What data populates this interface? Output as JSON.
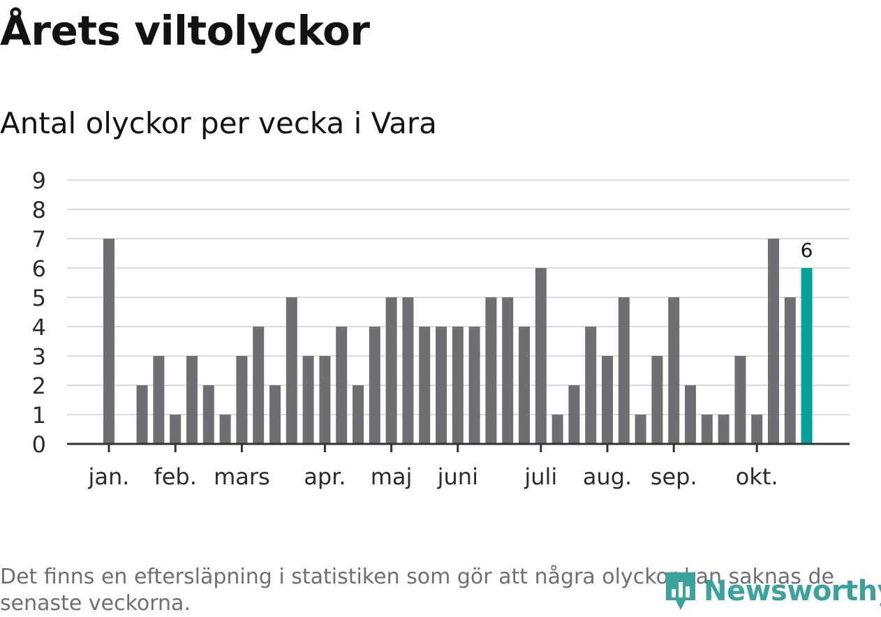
{
  "header": {
    "title": "Årets viltolyckor",
    "subtitle": "Antal olyckor per vecka i Vara"
  },
  "footnote": "Det finns en eftersläpning i statistiken som gör att några olyckor kan saknas de senaste veckorna.",
  "logo": {
    "text": "Newsworthy",
    "icon": "bar-chart-pin-icon",
    "color": "#3aa39c"
  },
  "chart_data": {
    "type": "bar",
    "ylim": [
      0,
      9
    ],
    "yticks": [
      "0",
      "1",
      "2",
      "3",
      "4",
      "5",
      "6",
      "7",
      "8",
      "9"
    ],
    "grid": true,
    "values": [
      7,
      0,
      2,
      3,
      1,
      3,
      2,
      1,
      3,
      4,
      2,
      5,
      3,
      3,
      4,
      2,
      4,
      5,
      5,
      4,
      4,
      4,
      4,
      5,
      5,
      4,
      6,
      1,
      2,
      4,
      3,
      5,
      1,
      3,
      5,
      2,
      1,
      1,
      3,
      1,
      7,
      5,
      6
    ],
    "month_labels": [
      {
        "label": "jan.",
        "index": 0
      },
      {
        "label": "feb.",
        "index": 4
      },
      {
        "label": "mars",
        "index": 8
      },
      {
        "label": "apr.",
        "index": 13
      },
      {
        "label": "maj",
        "index": 17
      },
      {
        "label": "juni",
        "index": 21
      },
      {
        "label": "juli",
        "index": 26
      },
      {
        "label": "aug.",
        "index": 30
      },
      {
        "label": "sep.",
        "index": 34
      },
      {
        "label": "okt.",
        "index": 39
      }
    ],
    "highlight": {
      "index": 42,
      "label": "6",
      "color": "#00a39a"
    },
    "bar_color": "#6f6e73"
  }
}
